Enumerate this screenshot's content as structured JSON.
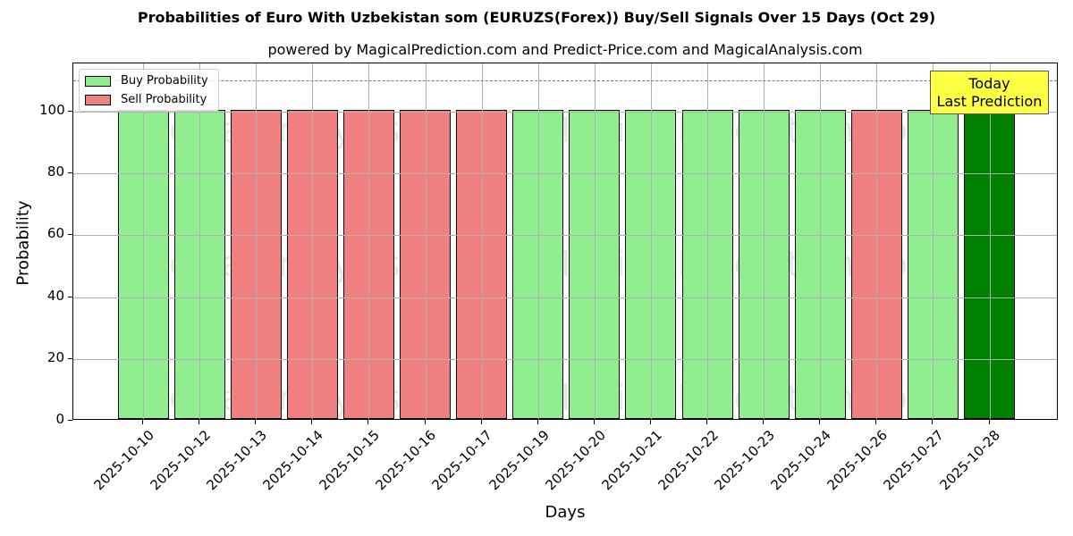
{
  "chart_data": {
    "type": "bar",
    "title": "Probabilities of Euro With Uzbekistan som (EURUZS(Forex)) Buy/Sell Signals Over 15 Days (Oct 29)",
    "subtitle": "powered by MagicalPrediction.com and Predict-Price.com and MagicalAnalysis.com",
    "xlabel": "Days",
    "ylabel": "Probability",
    "ylim": [
      0,
      115
    ],
    "yticks": [
      0,
      20,
      40,
      60,
      80,
      100
    ],
    "grid": true,
    "legend_position": "upper left",
    "legend": [
      "Buy Probability",
      "Sell Probability"
    ],
    "reference_line": {
      "y": 110,
      "style": "dashed"
    },
    "annotation": "Today\nLast Prediction",
    "categories": [
      "2025-10-10",
      "2025-10-12",
      "2025-10-13",
      "2025-10-14",
      "2025-10-15",
      "2025-10-16",
      "2025-10-17",
      "2025-10-19",
      "2025-10-20",
      "2025-10-21",
      "2025-10-22",
      "2025-10-23",
      "2025-10-24",
      "2025-10-26",
      "2025-10-27",
      "2025-10-28"
    ],
    "signals": [
      "buy",
      "buy",
      "sell",
      "sell",
      "sell",
      "sell",
      "sell",
      "buy",
      "buy",
      "buy",
      "buy",
      "buy",
      "buy",
      "sell",
      "buy",
      "today"
    ],
    "values": [
      100,
      100,
      100,
      100,
      100,
      100,
      100,
      100,
      100,
      100,
      100,
      100,
      100,
      100,
      100,
      100
    ],
    "series": [
      {
        "name": "Buy Probability",
        "color": "#90ee90"
      },
      {
        "name": "Sell Probability",
        "color": "#f08080"
      },
      {
        "name": "Today",
        "color": "#008000"
      }
    ]
  },
  "labels": {
    "title": "Probabilities of Euro With Uzbekistan som (EURUZS(Forex)) Buy/Sell Signals Over 15 Days (Oct 29)",
    "subtitle": "powered by MagicalPrediction.com and Predict-Price.com and MagicalAnalysis.com",
    "xlabel": "Days",
    "ylabel": "Probability",
    "legend_buy": "Buy Probability",
    "legend_sell": "Sell Probability",
    "annot_line1": "Today",
    "annot_line2": "Last Prediction",
    "watermark1": "MagicalAnalysis.com",
    "watermark2": "MagicalPrediction.com"
  }
}
